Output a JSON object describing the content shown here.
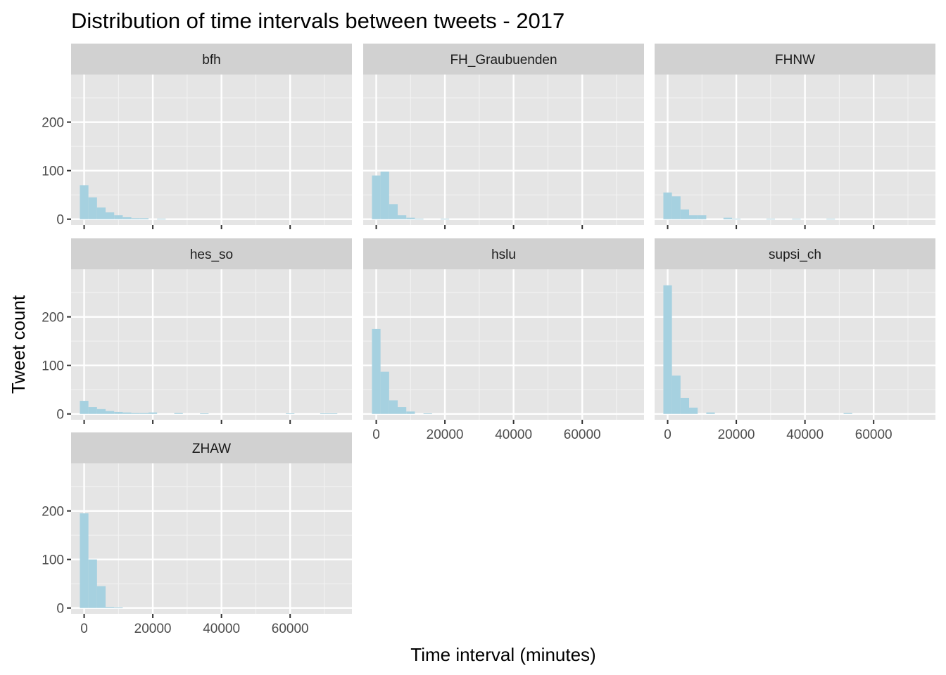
{
  "chart_data": {
    "type": "bar",
    "title": "Distribution of time intervals between tweets - 2017",
    "xlabel": "Time interval (minutes)",
    "ylabel": "Tweet count",
    "xlim": [
      -3800,
      78000
    ],
    "ylim": [
      -12,
      298
    ],
    "x_ticks": [
      0,
      20000,
      40000,
      60000
    ],
    "y_ticks": [
      0,
      100,
      200
    ],
    "bin_width": 2500,
    "grid": true,
    "bar_color": "#a6d1e0",
    "panel_background": "#e5e5e5",
    "strip_background": "#d1d1d1",
    "facet_layout": {
      "columns": 3,
      "rows": 3
    },
    "panels": [
      {
        "label": "bfh",
        "bins": [
          {
            "x": 0,
            "count": 70
          },
          {
            "x": 2500,
            "count": 45
          },
          {
            "x": 5000,
            "count": 24
          },
          {
            "x": 7500,
            "count": 14
          },
          {
            "x": 10000,
            "count": 8
          },
          {
            "x": 12500,
            "count": 4
          },
          {
            "x": 15000,
            "count": 2
          },
          {
            "x": 17500,
            "count": 2
          },
          {
            "x": 22500,
            "count": 1
          }
        ]
      },
      {
        "label": "FH_Graubuenden",
        "bins": [
          {
            "x": 0,
            "count": 90
          },
          {
            "x": 2500,
            "count": 98
          },
          {
            "x": 5000,
            "count": 31
          },
          {
            "x": 7500,
            "count": 8
          },
          {
            "x": 10000,
            "count": 3
          },
          {
            "x": 12500,
            "count": 1
          },
          {
            "x": 20000,
            "count": 1
          }
        ]
      },
      {
        "label": "FHNW",
        "bins": [
          {
            "x": 0,
            "count": 55
          },
          {
            "x": 2500,
            "count": 47
          },
          {
            "x": 5000,
            "count": 20
          },
          {
            "x": 7500,
            "count": 8
          },
          {
            "x": 10000,
            "count": 8
          },
          {
            "x": 17500,
            "count": 3
          },
          {
            "x": 20000,
            "count": 1
          },
          {
            "x": 30000,
            "count": 1
          },
          {
            "x": 37500,
            "count": 1
          },
          {
            "x": 47500,
            "count": 1
          }
        ]
      },
      {
        "label": "hes_so",
        "bins": [
          {
            "x": 0,
            "count": 27
          },
          {
            "x": 2500,
            "count": 14
          },
          {
            "x": 5000,
            "count": 10
          },
          {
            "x": 7500,
            "count": 6
          },
          {
            "x": 10000,
            "count": 4
          },
          {
            "x": 12500,
            "count": 3
          },
          {
            "x": 15000,
            "count": 2
          },
          {
            "x": 17500,
            "count": 2
          },
          {
            "x": 20000,
            "count": 3
          },
          {
            "x": 27500,
            "count": 2
          },
          {
            "x": 35000,
            "count": 1
          },
          {
            "x": 60000,
            "count": 1
          },
          {
            "x": 70000,
            "count": 1
          },
          {
            "x": 72500,
            "count": 1
          }
        ]
      },
      {
        "label": "hslu",
        "bins": [
          {
            "x": 0,
            "count": 175
          },
          {
            "x": 2500,
            "count": 87
          },
          {
            "x": 5000,
            "count": 28
          },
          {
            "x": 7500,
            "count": 14
          },
          {
            "x": 10000,
            "count": 5
          },
          {
            "x": 15000,
            "count": 1
          }
        ]
      },
      {
        "label": "supsi_ch",
        "bins": [
          {
            "x": 0,
            "count": 265
          },
          {
            "x": 2500,
            "count": 79
          },
          {
            "x": 5000,
            "count": 33
          },
          {
            "x": 7500,
            "count": 13
          },
          {
            "x": 12500,
            "count": 3
          },
          {
            "x": 52500,
            "count": 2
          }
        ]
      },
      {
        "label": "ZHAW",
        "bins": [
          {
            "x": 0,
            "count": 195
          },
          {
            "x": 2500,
            "count": 100
          },
          {
            "x": 5000,
            "count": 45
          },
          {
            "x": 7500,
            "count": 2
          },
          {
            "x": 10000,
            "count": 1
          }
        ]
      }
    ]
  }
}
